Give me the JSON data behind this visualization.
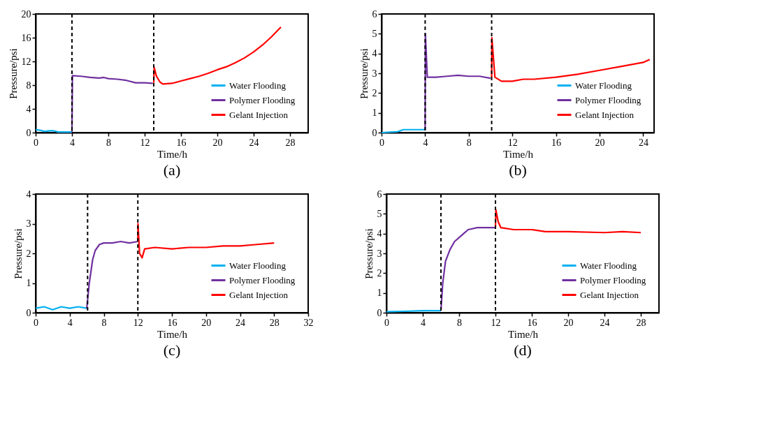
{
  "chart_data": [
    {
      "type": "line",
      "xlabel": "Time/h",
      "ylabel": "Pressure/psi",
      "xlim": [
        0,
        30
      ],
      "ylim": [
        0,
        20
      ],
      "xticks": [
        0,
        4,
        8,
        12,
        16,
        20,
        24,
        28
      ],
      "yticks": [
        0,
        4,
        8,
        12,
        16,
        20
      ],
      "legend": "bottom right",
      "grid": false,
      "annotations": [
        "(a)"
      ],
      "ref_lines": [
        {
          "axis": "x",
          "value": 4,
          "color": "#000000",
          "line_style": "dashed"
        },
        {
          "axis": "x",
          "value": 13,
          "color": "#000000",
          "line_style": "dashed"
        }
      ],
      "series": [
        {
          "name": "Water Flooding",
          "color": "#00b0f0",
          "x": [
            0,
            0.5,
            1,
            1.5,
            2,
            2.5,
            3,
            4
          ],
          "values": [
            0.5,
            0.4,
            0.2,
            0.3,
            0.3,
            0.1,
            0.1,
            0.1
          ]
        },
        {
          "name": "Polymer Flooding",
          "color": "#7030a0",
          "x": [
            4,
            4.05,
            5,
            6,
            7,
            7.5,
            8,
            9,
            10,
            11,
            12,
            12.9
          ],
          "values": [
            0.1,
            9.6,
            9.5,
            9.3,
            9.2,
            9.3,
            9.1,
            9,
            8.8,
            8.4,
            8.4,
            8.3
          ]
        },
        {
          "name": "Gelant Injection",
          "color": "#ff0000",
          "x": [
            13,
            13.05,
            13.3,
            13.7,
            14,
            15,
            16,
            17,
            18,
            19,
            20,
            21,
            22,
            23,
            24,
            25,
            26,
            27
          ],
          "values": [
            8.4,
            11,
            9.5,
            8.5,
            8.2,
            8.3,
            8.7,
            9.1,
            9.5,
            10,
            10.6,
            11.1,
            11.8,
            12.6,
            13.6,
            14.8,
            16.2,
            17.8
          ]
        }
      ]
    },
    {
      "type": "line",
      "xlabel": "Time/h",
      "ylabel": "Pressure/psi",
      "xlim": [
        0,
        25
      ],
      "ylim": [
        0,
        6
      ],
      "xticks": [
        0,
        4,
        8,
        12,
        16,
        20,
        24
      ],
      "yticks": [
        0,
        1,
        2,
        3,
        4,
        5,
        6
      ],
      "legend": "bottom right",
      "grid": false,
      "annotations": [
        "(b)"
      ],
      "ref_lines": [
        {
          "axis": "x",
          "value": 4,
          "color": "#000000",
          "line_style": "dashed"
        },
        {
          "axis": "x",
          "value": 10.1,
          "color": "#000000",
          "line_style": "dashed"
        }
      ],
      "series": [
        {
          "name": "Water Flooding",
          "color": "#00b0f0",
          "x": [
            0,
            1.5,
            2,
            4
          ],
          "values": [
            0,
            0.05,
            0.15,
            0.15
          ]
        },
        {
          "name": "Polymer Flooding",
          "color": "#7030a0",
          "x": [
            4,
            4.02,
            4.2,
            5,
            6,
            7,
            8,
            9,
            10
          ],
          "values": [
            0.15,
            5,
            2.8,
            2.8,
            2.85,
            2.9,
            2.85,
            2.85,
            2.75
          ]
        },
        {
          "name": "Gelant Injection",
          "color": "#ff0000",
          "x": [
            10.1,
            10.12,
            10.4,
            11,
            12,
            13,
            14,
            16,
            18,
            20,
            22,
            24,
            24.6
          ],
          "values": [
            2.8,
            4.8,
            2.8,
            2.6,
            2.6,
            2.7,
            2.7,
            2.8,
            2.95,
            3.15,
            3.35,
            3.55,
            3.7
          ]
        }
      ]
    },
    {
      "type": "line",
      "xlabel": "Time/h",
      "ylabel": "Pressure/psi",
      "xlim": [
        0,
        32
      ],
      "ylim": [
        0,
        4
      ],
      "xticks": [
        0,
        4,
        8,
        12,
        16,
        20,
        24,
        28,
        32
      ],
      "yticks": [
        0,
        1,
        2,
        3,
        4
      ],
      "legend": "bottom right",
      "grid": false,
      "annotations": [
        "(c)"
      ],
      "ref_lines": [
        {
          "axis": "x",
          "value": 6.1,
          "color": "#000000",
          "line_style": "dashed"
        },
        {
          "axis": "x",
          "value": 12,
          "color": "#000000",
          "line_style": "dashed"
        }
      ],
      "series": [
        {
          "name": "Water Flooding",
          "color": "#00b0f0",
          "x": [
            0,
            1,
            2,
            3,
            4,
            5,
            6
          ],
          "values": [
            0.15,
            0.2,
            0.1,
            0.2,
            0.15,
            0.2,
            0.15
          ]
        },
        {
          "name": "Polymer Flooding",
          "color": "#7030a0",
          "x": [
            6,
            6.3,
            6.7,
            7,
            7.5,
            8,
            9,
            10,
            11,
            12
          ],
          "values": [
            0.15,
            1,
            1.8,
            2.1,
            2.3,
            2.35,
            2.35,
            2.4,
            2.35,
            2.4
          ]
        },
        {
          "name": "Gelant Injection",
          "color": "#ff0000",
          "x": [
            12,
            12.02,
            12.2,
            12.5,
            12.8,
            14,
            16,
            18,
            20,
            22,
            24,
            26,
            28
          ],
          "values": [
            2.4,
            3,
            2,
            1.85,
            2.15,
            2.2,
            2.15,
            2.2,
            2.2,
            2.25,
            2.25,
            2.3,
            2.35
          ]
        }
      ]
    },
    {
      "type": "line",
      "xlabel": "Time/h",
      "ylabel": "Pressure/psi",
      "xlim": [
        0,
        30
      ],
      "ylim": [
        0,
        6
      ],
      "xticks": [
        0,
        4,
        8,
        12,
        16,
        20,
        24,
        28
      ],
      "yticks": [
        0,
        1,
        2,
        3,
        4,
        5,
        6
      ],
      "legend": "bottom right",
      "grid": false,
      "annotations": [
        "(d)"
      ],
      "ref_lines": [
        {
          "axis": "x",
          "value": 6,
          "color": "#000000",
          "line_style": "dashed"
        },
        {
          "axis": "x",
          "value": 12,
          "color": "#000000",
          "line_style": "dashed"
        }
      ],
      "series": [
        {
          "name": "Water Flooding",
          "color": "#00b0f0",
          "x": [
            0,
            2,
            4,
            6
          ],
          "values": [
            0.05,
            0.07,
            0.1,
            0.1
          ]
        },
        {
          "name": "Polymer Flooding",
          "color": "#7030a0",
          "x": [
            6,
            6.2,
            6.5,
            7,
            7.5,
            8,
            8.5,
            9,
            10,
            11,
            12
          ],
          "values": [
            0.1,
            1.5,
            2.6,
            3.2,
            3.6,
            3.8,
            4,
            4.2,
            4.3,
            4.3,
            4.3
          ]
        },
        {
          "name": "Gelant Injection",
          "color": "#ff0000",
          "x": [
            12,
            12.05,
            12.3,
            12.6,
            14,
            16,
            17.5,
            20,
            24,
            26,
            28
          ],
          "values": [
            4.3,
            5.2,
            4.6,
            4.3,
            4.2,
            4.2,
            4.1,
            4.1,
            4.05,
            4.1,
            4.05
          ]
        }
      ]
    }
  ]
}
